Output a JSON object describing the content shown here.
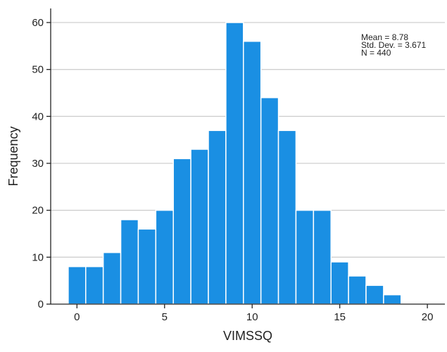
{
  "chart_data": {
    "type": "bar",
    "subtype": "histogram",
    "xlabel": "VIMSSQ",
    "ylabel": "Frequency",
    "xlim": [
      -1.5,
      21.0
    ],
    "ylim": [
      0,
      63
    ],
    "x_ticks": [
      0,
      5,
      10,
      15,
      20
    ],
    "y_ticks": [
      0,
      10,
      20,
      30,
      40,
      50,
      60
    ],
    "bin_width": 1,
    "bins": [
      {
        "start": -0.5,
        "end": 0.5,
        "count": 8
      },
      {
        "start": 0.5,
        "end": 1.5,
        "count": 8
      },
      {
        "start": 1.5,
        "end": 2.5,
        "count": 11
      },
      {
        "start": 2.5,
        "end": 3.5,
        "count": 18
      },
      {
        "start": 3.5,
        "end": 4.5,
        "count": 16
      },
      {
        "start": 4.5,
        "end": 5.5,
        "count": 20
      },
      {
        "start": 5.5,
        "end": 6.5,
        "count": 31
      },
      {
        "start": 6.5,
        "end": 7.5,
        "count": 33
      },
      {
        "start": 7.5,
        "end": 8.5,
        "count": 37
      },
      {
        "start": 8.5,
        "end": 9.5,
        "count": 60
      },
      {
        "start": 9.5,
        "end": 10.5,
        "count": 56
      },
      {
        "start": 10.5,
        "end": 11.5,
        "count": 44
      },
      {
        "start": 11.5,
        "end": 12.5,
        "count": 37
      },
      {
        "start": 12.5,
        "end": 13.5,
        "count": 20
      },
      {
        "start": 13.5,
        "end": 14.5,
        "count": 20
      },
      {
        "start": 14.5,
        "end": 15.5,
        "count": 9
      },
      {
        "start": 15.5,
        "end": 16.5,
        "count": 6
      },
      {
        "start": 16.5,
        "end": 17.5,
        "count": 4
      },
      {
        "start": 17.5,
        "end": 18.5,
        "count": 2
      }
    ],
    "stats": [
      "Mean = 8.78",
      "Std. Dev. = 3.671",
      "N = 440"
    ],
    "grid": true,
    "colors": {
      "bar": "#1a8fe3",
      "bar_edge": "#ffffff",
      "grid": "#cfcfcf",
      "axis": "#222222"
    }
  }
}
